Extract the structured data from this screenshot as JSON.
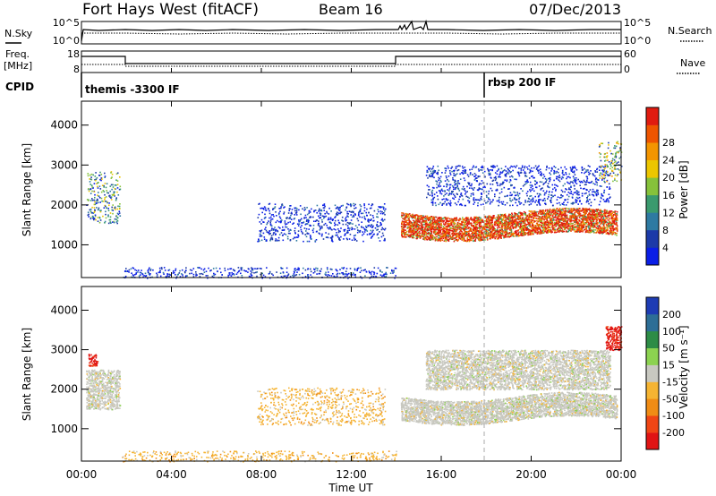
{
  "header": {
    "title": "Fort Hays West (fitACF)",
    "beam": "Beam 16",
    "date": "07/Dec/2013"
  },
  "noise_panel": {
    "left_label": "N.Sky",
    "right_label": "N.Search",
    "left_tick_top": "10^5",
    "left_tick_bottom": "10^0",
    "right_tick_top": "10^5",
    "right_tick_bottom": "10^0"
  },
  "freq_panel": {
    "left_label": "Freq.",
    "left_unit": "[MHz]",
    "right_label": "Nave",
    "left_tick_top": "18",
    "left_tick_bottom": "8",
    "right_tick_top": "60",
    "right_tick_bottom": "0"
  },
  "cpid": {
    "label": "CPID",
    "modes": [
      "themis -3300 IF",
      "rbsp 200 IF"
    ]
  },
  "x_axis": {
    "label": "Time UT",
    "ticks": [
      "00:00",
      "04:00",
      "08:00",
      "12:00",
      "16:00",
      "20:00",
      "00:00"
    ],
    "tick_hours": [
      0,
      4,
      8,
      12,
      16,
      20,
      24
    ],
    "range_hours": [
      0,
      24
    ]
  },
  "power_panel": {
    "ylabel": "Slant Range [km]",
    "yticks": [
      "1000",
      "2000",
      "3000",
      "4000"
    ],
    "ytick_values": [
      1000,
      2000,
      3000,
      4000
    ],
    "colorbar_label": "Power [dB]",
    "colorbar_ticks": [
      "4",
      "8",
      "12",
      "16",
      "20",
      "24",
      "28"
    ],
    "colorbar_colors": [
      "#0a1ee6",
      "#1c3aa8",
      "#2e7aa2",
      "#3a9a6e",
      "#86c23a",
      "#ecc600",
      "#f39500",
      "#ee5500",
      "#e01b10"
    ]
  },
  "velocity_panel": {
    "ylabel": "Slant Range [km]",
    "yticks": [
      "1000",
      "2000",
      "3000",
      "4000"
    ],
    "ytick_values": [
      1000,
      2000,
      3000,
      4000
    ],
    "colorbar_label": "Velocity [m s⁻¹]",
    "colorbar_ticks": [
      "200",
      "100",
      "50",
      "15",
      "-15",
      "-50",
      "-100",
      "-200"
    ],
    "colorbar_colors": [
      "#1e3cb4",
      "#2d6e96",
      "#2d8c46",
      "#8cd250",
      "#c8c8c0",
      "#f5b432",
      "#f08c14",
      "#f04614",
      "#e01414"
    ]
  },
  "chart_data": [
    {
      "type": "heatmap",
      "name": "power",
      "xlabel": "Time UT",
      "ylabel": "Slant Range [km]",
      "xlim_hours": [
        0,
        24
      ],
      "ylim_km": [
        180,
        4600
      ],
      "colorbar": {
        "label": "Power [dB]",
        "range": [
          0,
          30
        ]
      },
      "regions": [
        {
          "t0": 0.2,
          "t1": 1.7,
          "r0": 1550,
          "r1": 2850,
          "level": "mixed-low"
        },
        {
          "t0": 7.8,
          "t1": 13.5,
          "r0": 1100,
          "r1": 2050,
          "level": "low"
        },
        {
          "t0": 1.8,
          "t1": 14.0,
          "r0": 180,
          "r1": 450,
          "level": "low"
        },
        {
          "t0": 14.2,
          "t1": 23.8,
          "r0": 1000,
          "r1": 1800,
          "level": "high"
        },
        {
          "t0": 15.3,
          "t1": 23.5,
          "r0": 2000,
          "r1": 3000,
          "level": "low"
        },
        {
          "t0": 23.0,
          "t1": 24.0,
          "r0": 2600,
          "r1": 3600,
          "level": "mixed"
        }
      ]
    },
    {
      "type": "heatmap",
      "name": "velocity",
      "xlabel": "Time UT",
      "ylabel": "Slant Range [km]",
      "xlim_hours": [
        0,
        24
      ],
      "ylim_km": [
        180,
        4600
      ],
      "colorbar": {
        "label": "Velocity [m s⁻¹]",
        "range": [
          -200,
          200
        ]
      },
      "regions": [
        {
          "t0": 0.2,
          "t1": 1.7,
          "r0": 1500,
          "r1": 2500,
          "level": "near-zero"
        },
        {
          "t0": 0.3,
          "t1": 0.7,
          "r0": 2600,
          "r1": 2900,
          "level": "strong-negative"
        },
        {
          "t0": 7.8,
          "t1": 13.5,
          "r0": 1100,
          "r1": 2050,
          "level": "negative"
        },
        {
          "t0": 1.8,
          "t1": 14.0,
          "r0": 180,
          "r1": 450,
          "level": "negative"
        },
        {
          "t0": 14.2,
          "t1": 23.8,
          "r0": 1000,
          "r1": 1800,
          "level": "near-zero"
        },
        {
          "t0": 15.3,
          "t1": 23.5,
          "r0": 2000,
          "r1": 3000,
          "level": "near-zero"
        },
        {
          "t0": 23.3,
          "t1": 24.0,
          "r0": 3000,
          "r1": 3600,
          "level": "strong-negative"
        }
      ]
    }
  ]
}
